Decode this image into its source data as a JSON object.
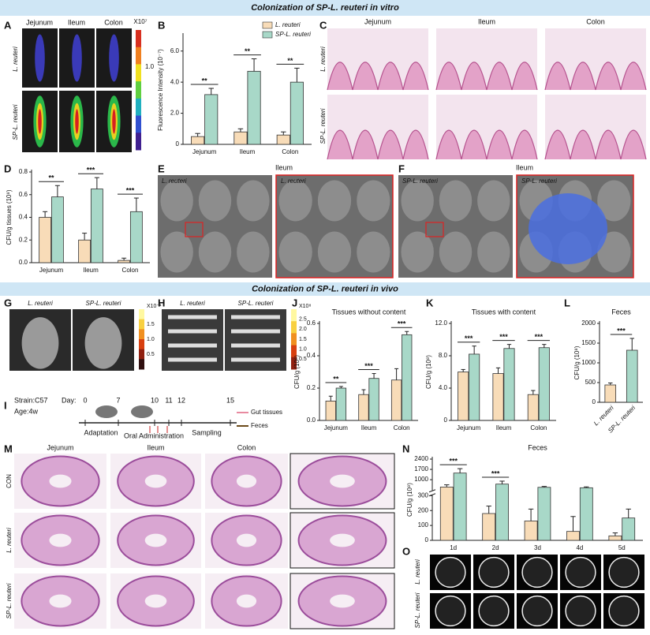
{
  "banners": [
    "Colonization of SP-L. reuteri in vitro",
    "Colonization of SP-L. reuteri in vivo"
  ],
  "panel_labels": [
    "A",
    "B",
    "C",
    "D",
    "E",
    "F",
    "G",
    "H",
    "I",
    "J",
    "K",
    "L",
    "M",
    "N",
    "O"
  ],
  "A": {
    "columns": [
      "Jejunum",
      "Ileum",
      "Colon"
    ],
    "rows": [
      "L. reuteri",
      "SP-L. reuteri"
    ],
    "colorbar": [
      "X10⁷",
      "1.0"
    ]
  },
  "C": {
    "columns": [
      "Jejunum",
      "Ileum",
      "Colon"
    ],
    "rows": [
      "L. reuteri",
      "SP-L. reuteri"
    ]
  },
  "E": {
    "title": "Ileum",
    "left": "L. reuteri",
    "right": "L. reuteri"
  },
  "F": {
    "title": "Ileum",
    "left": "SP-L. reuteri",
    "right": "SP-L. reuteri"
  },
  "G": {
    "columns": [
      "L. reuteri",
      "SP-L. reuteri"
    ],
    "colorbar": [
      "X10⁻¹",
      "1.5",
      "1.0",
      "0.5"
    ]
  },
  "H": {
    "columns": [
      "L. reuteri",
      "SP-L. reuteri"
    ],
    "colorbar": [
      "X10⁸",
      "2.5",
      "2.0",
      "1.5",
      "1.0",
      "0.5"
    ]
  },
  "I": {
    "strain": "Strain:C57",
    "age": "Age:4w",
    "day": "Day:",
    "days": [
      "0",
      "7",
      "10",
      "11",
      "12",
      "15"
    ],
    "phases": [
      "Adaptation",
      "Oral Administration",
      "Sampling"
    ],
    "legend": [
      "Gut tissues",
      "Feces"
    ]
  },
  "M": {
    "columns": [
      "Jejunum",
      "Ileum",
      "Colon"
    ],
    "rows": [
      "CON",
      "L. reuteri",
      "SP-L. reuteri"
    ]
  },
  "O": {
    "rows": [
      "L. reuteri",
      "SP-L. reuteri"
    ]
  },
  "chart_data": [
    {
      "type": "bar",
      "ylabel": "Fluorescence Intensity (10⁻⁷)",
      "categories": [
        "Jejunum",
        "Ileum",
        "Colon"
      ],
      "series": [
        {
          "name": "L. reuteri",
          "color": "#f8dcb8",
          "values": [
            0.5,
            0.8,
            0.6
          ],
          "errors": [
            0.2,
            0.2,
            0.2
          ]
        },
        {
          "name": "SP-L. reuteri",
          "color": "#a8d8c8",
          "values": [
            3.2,
            4.7,
            4.0
          ],
          "errors": [
            0.4,
            0.8,
            0.9
          ]
        }
      ],
      "ylim": [
        0,
        7
      ],
      "yticks": [
        0,
        {
          "value": 2,
          "label": "2.0"
        },
        {
          "value": 4,
          "label": "4.0"
        },
        {
          "value": 6,
          "label": "6.0"
        }
      ],
      "annotations": [
        "**",
        "**",
        "**"
      ],
      "legend": "top-right"
    },
    {
      "type": "bar",
      "ylabel": "CFU/g tissues (10⁸)",
      "categories": [
        "Jejunum",
        "Ileum",
        "Colon"
      ],
      "series": [
        {
          "color": "#f8dcb8",
          "values": [
            0.4,
            0.2,
            0.02
          ],
          "errors": [
            0.05,
            0.06,
            0.02
          ]
        },
        {
          "color": "#a8d8c8",
          "values": [
            0.58,
            0.65,
            0.45
          ],
          "errors": [
            0.1,
            0.1,
            0.12
          ]
        }
      ],
      "ylim": [
        0,
        0.8
      ],
      "yticks": [
        {
          "value": 0,
          "label": "0.0"
        },
        0.2,
        0.4,
        0.6,
        0.8
      ],
      "annotations": [
        "**",
        "***",
        "***"
      ]
    },
    {
      "type": "bar",
      "title": "Tissues without content",
      "ylabel": "CFU/g (10⁸)",
      "categories": [
        "Jejunum",
        "Ileum",
        "Colon"
      ],
      "series": [
        {
          "color": "#f8dcb8",
          "values": [
            0.12,
            0.16,
            0.25
          ],
          "errors": [
            0.03,
            0.03,
            0.07
          ]
        },
        {
          "color": "#a8d8c8",
          "values": [
            0.2,
            0.26,
            0.53
          ],
          "errors": [
            0.01,
            0.03,
            0.02
          ]
        }
      ],
      "ylim": [
        0,
        0.6
      ],
      "yticks": [
        {
          "value": 0,
          "label": "0.0"
        },
        0.2,
        0.4,
        0.6
      ],
      "annotations": [
        "**",
        "***",
        "***"
      ]
    },
    {
      "type": "bar",
      "title": "Tissues with content",
      "ylabel": "CFU/g (10⁸)",
      "categories": [
        "Jejunum",
        "Ileum",
        "Colon"
      ],
      "series": [
        {
          "color": "#f8dcb8",
          "values": [
            6.0,
            5.8,
            3.2
          ],
          "errors": [
            0.3,
            0.7,
            0.5
          ]
        },
        {
          "color": "#a8d8c8",
          "values": [
            8.2,
            8.9,
            9.0
          ],
          "errors": [
            1.0,
            0.5,
            0.4
          ]
        }
      ],
      "ylim": [
        0,
        12
      ],
      "yticks": [
        0,
        {
          "value": 4,
          "label": "4.0"
        },
        {
          "value": 8,
          "label": "8.0"
        },
        {
          "value": 12,
          "label": "12.0"
        }
      ],
      "annotations": [
        "***",
        "***",
        "***"
      ]
    },
    {
      "type": "bar",
      "title": "Feces",
      "ylabel": "CFU/g (10⁸)",
      "categories": [
        "L. reuteri",
        "SP-L. reuteri"
      ],
      "values": [
        440,
        1320
      ],
      "errors": [
        50,
        300
      ],
      "colors": [
        "#f8dcb8",
        "#a8d8c8"
      ],
      "ylim": [
        0,
        2000
      ],
      "yticks": [
        0,
        500,
        1000,
        1500,
        2000
      ],
      "annotations": [
        "***"
      ]
    },
    {
      "type": "bar",
      "title": "Feces",
      "ylabel": "CFU/g (10⁸)",
      "categories": [
        "1d",
        "2d",
        "3d",
        "4d",
        "5d"
      ],
      "series": [
        {
          "color": "#f8dcb8",
          "values": [
            500,
            180,
            130,
            60,
            30
          ],
          "errors": [
            150,
            50,
            80,
            100,
            20
          ]
        },
        {
          "color": "#a8d8c8",
          "values": [
            1450,
            700,
            480,
            450,
            150
          ],
          "errors": [
            300,
            200,
            60,
            60,
            60
          ]
        }
      ],
      "ylim": [
        0,
        2400
      ],
      "ybreak": 300,
      "yticks": [
        0,
        100,
        200,
        300,
        1000,
        1700,
        2400
      ],
      "annotations": [
        "***",
        "***",
        null,
        null,
        null
      ]
    }
  ]
}
